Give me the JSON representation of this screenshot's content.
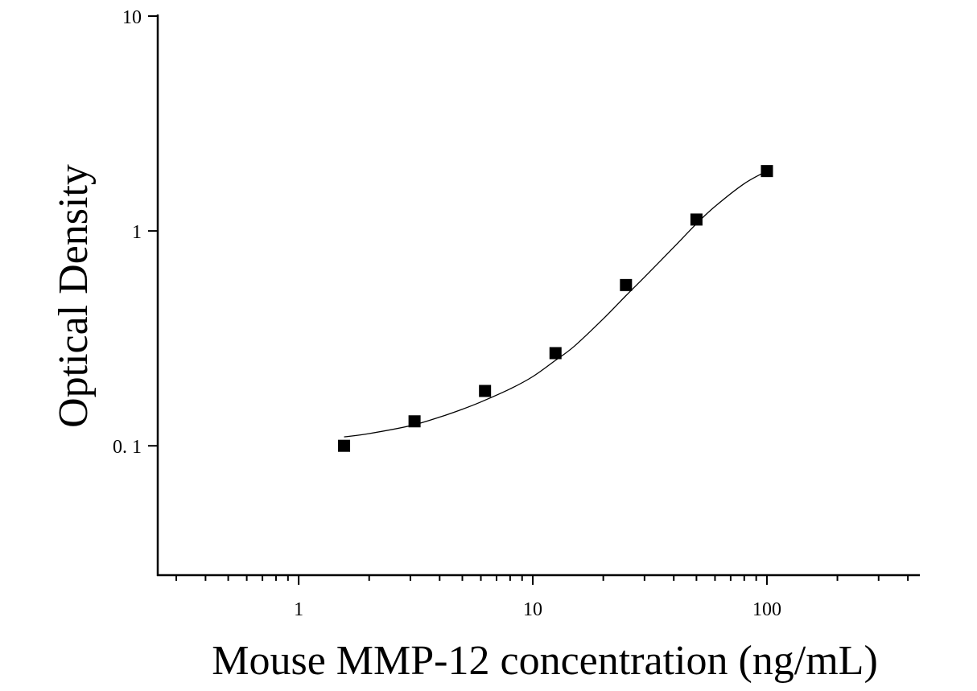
{
  "chart_data": {
    "type": "scatter",
    "title": "",
    "xlabel": "Mouse MMP-12 concentration (ng/mL)",
    "ylabel": "Optical Density",
    "x_scale": "log",
    "y_scale": "log",
    "xlim": [
      0.25,
      450
    ],
    "ylim": [
      0.025,
      10
    ],
    "x_tick_labels": [
      {
        "value": 1,
        "label": "1"
      },
      {
        "value": 10,
        "label": "10"
      },
      {
        "value": 100,
        "label": "100"
      }
    ],
    "y_tick_labels": [
      {
        "value": 0.1,
        "label": "0. 1"
      },
      {
        "value": 1,
        "label": "1"
      },
      {
        "value": 10,
        "label": "10"
      }
    ],
    "grid": false,
    "legend": "none",
    "series": [
      {
        "x": [
          1.5625,
          3.125,
          6.25,
          12.5,
          25,
          50,
          100
        ],
        "y": [
          0.1,
          0.13,
          0.18,
          0.27,
          0.56,
          1.13,
          1.9
        ]
      }
    ],
    "fit_curve": {
      "style": "smooth sigmoidal fit through points",
      "x": [
        1.5625,
        2,
        3,
        4,
        5,
        6,
        8,
        10,
        12.5,
        15,
        20,
        25,
        30,
        40,
        50,
        60,
        80,
        100
      ],
      "y": [
        0.11,
        0.114,
        0.124,
        0.136,
        0.148,
        0.16,
        0.184,
        0.21,
        0.25,
        0.29,
        0.39,
        0.5,
        0.61,
        0.84,
        1.08,
        1.3,
        1.66,
        1.9
      ]
    },
    "colors": {
      "marker": "#000000",
      "line": "#000000",
      "axis": "#000000"
    }
  }
}
